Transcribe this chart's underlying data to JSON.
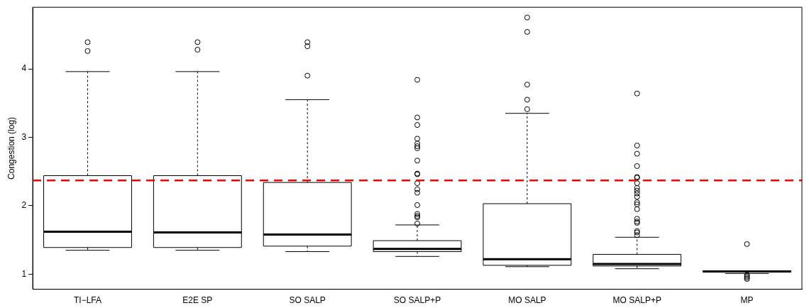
{
  "chart_data": {
    "type": "box",
    "ylabel": "Congestion (log)",
    "categories": [
      "TI−LFA",
      "E2E SP",
      "SO SALP",
      "SO SALP+P",
      "MO SALP",
      "MO SALP+P",
      "MP"
    ],
    "boxes": [
      {
        "low": 1.35,
        "q1": 1.39,
        "median": 1.62,
        "q3": 2.44,
        "high": 3.96,
        "outliers": [
          4.39,
          4.26
        ]
      },
      {
        "low": 1.35,
        "q1": 1.39,
        "median": 1.61,
        "q3": 2.44,
        "high": 3.96,
        "outliers": [
          4.39,
          4.28
        ]
      },
      {
        "low": 1.33,
        "q1": 1.41,
        "median": 1.58,
        "q3": 2.34,
        "high": 3.55,
        "outliers": [
          4.39,
          4.33,
          3.9
        ]
      },
      {
        "low": 1.26,
        "q1": 1.33,
        "median": 1.37,
        "q3": 1.49,
        "high": 1.72,
        "outliers": [
          3.84,
          3.29,
          3.18,
          2.98,
          2.91,
          2.87,
          2.84,
          2.66,
          2.47,
          2.46,
          2.33,
          2.24,
          2.19,
          2.01,
          1.88,
          1.85,
          1.83,
          1.74
        ]
      },
      {
        "low": 1.11,
        "q1": 1.13,
        "median": 1.22,
        "q3": 2.03,
        "high": 3.35,
        "outliers": [
          4.75,
          4.54,
          3.77,
          3.55,
          3.41
        ]
      },
      {
        "low": 1.08,
        "q1": 1.12,
        "median": 1.15,
        "q3": 1.29,
        "high": 1.54,
        "outliers": [
          3.64,
          2.88,
          2.76,
          2.58,
          2.42,
          2.41,
          2.33,
          2.26,
          2.22,
          2.18,
          2.13,
          2.05,
          2.02,
          1.95,
          1.81,
          1.77,
          1.75,
          1.63,
          1.61,
          1.57
        ]
      },
      {
        "low": 1.01,
        "q1": 1.03,
        "median": 1.04,
        "q3": 1.05,
        "high": 1.05,
        "outliers": [
          1.44,
          0.99,
          0.97,
          0.95,
          0.93
        ]
      }
    ],
    "ylim": [
      0.78,
      4.9
    ],
    "yticks": [
      1,
      2,
      3,
      4
    ],
    "grid": false,
    "legend": false,
    "ref_lines": [
      {
        "axis": "y",
        "value": 2.37,
        "color": "#ff0000",
        "line_style": "dashed"
      }
    ]
  }
}
